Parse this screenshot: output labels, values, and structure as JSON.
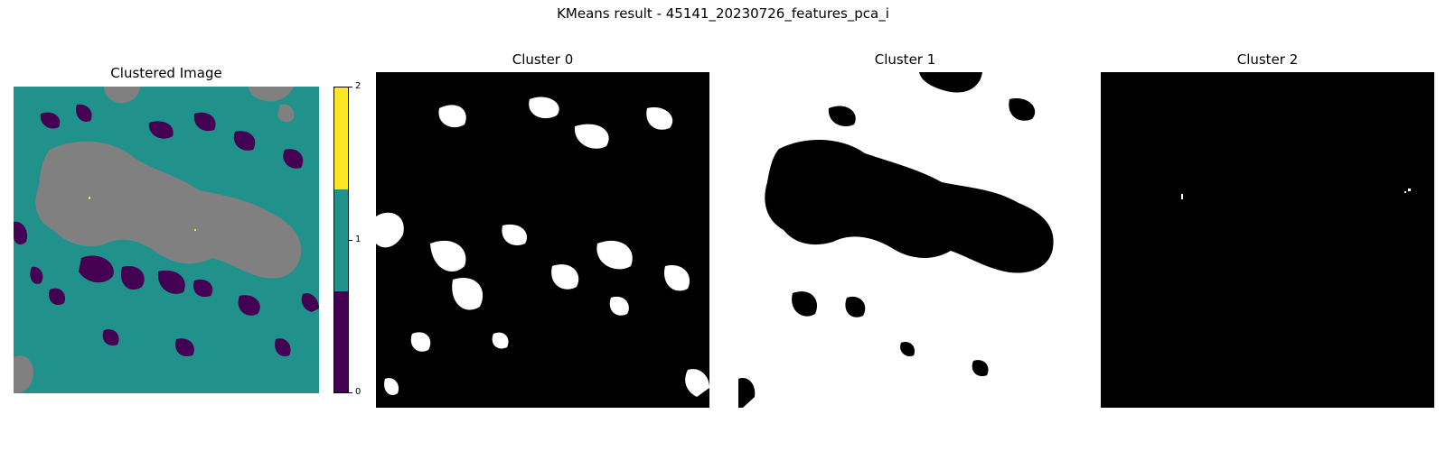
{
  "figure": {
    "title": "KMeans result - 45141_20230726_features_pca_i"
  },
  "colors": {
    "cluster_0": "#440154",
    "cluster_1": "#21918c",
    "cluster_2": "#fde725",
    "masked": "#808080",
    "mask_on": "#ffffff",
    "mask_off": "#000000"
  },
  "chart_data": [
    {
      "type": "heatmap",
      "title": "Clustered Image",
      "colormap": "viridis",
      "grid": false,
      "axes": "off",
      "categories": [
        0,
        1,
        2
      ],
      "colorbar": {
        "ticks": [
          "0",
          "1",
          "2"
        ],
        "range": [
          0,
          2
        ],
        "colors": [
          "#440154",
          "#21918c",
          "#fde725"
        ]
      }
    },
    {
      "type": "heatmap",
      "title": "Cluster 0",
      "colormap": "gray",
      "axes": "off",
      "grid": false
    },
    {
      "type": "heatmap",
      "title": "Cluster 1",
      "colormap": "gray",
      "axes": "off",
      "grid": false
    },
    {
      "type": "heatmap",
      "title": "Cluster 2",
      "colormap": "gray",
      "axes": "off",
      "grid": false
    }
  ]
}
